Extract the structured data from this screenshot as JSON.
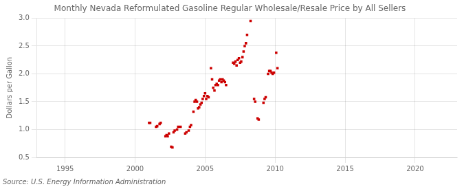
{
  "chart_data": {
    "type": "scatter",
    "title": "Monthly Nevada Reformulated Gasoline Regular Wholesale/Resale Price by All Sellers",
    "ylabel": "Dollars per Gallon",
    "annotations": [
      "Source: U.S. Energy Information Administration"
    ],
    "color": "#cc0000",
    "marker": "square",
    "grid": true,
    "xlim": [
      1993,
      2023
    ],
    "ylim": [
      0.5,
      3.0
    ],
    "xticks": [
      1995,
      2000,
      2005,
      2010,
      2015,
      2020
    ],
    "yticks": [
      0.5,
      {
        "value": 1.0,
        "label": "1.0"
      },
      1.5,
      {
        "value": 2.0,
        "label": "2.0"
      },
      2.5,
      {
        "value": 3.0,
        "label": "3.0"
      }
    ],
    "x": [
      2001.0,
      2001.08,
      2001.5,
      2001.58,
      2001.75,
      2001.83,
      2002.17,
      2002.25,
      2002.33,
      2002.42,
      2002.58,
      2002.67,
      2002.75,
      2002.83,
      2003.0,
      2003.08,
      2003.25,
      2003.58,
      2003.67,
      2003.83,
      2003.92,
      2004.0,
      2004.17,
      2004.25,
      2004.33,
      2004.42,
      2004.5,
      2004.58,
      2004.67,
      2004.75,
      2004.83,
      2004.92,
      2005.0,
      2005.08,
      2005.17,
      2005.25,
      2005.42,
      2005.5,
      2005.58,
      2005.67,
      2005.75,
      2005.83,
      2005.92,
      2006.0,
      2006.08,
      2006.17,
      2006.25,
      2006.33,
      2006.42,
      2006.5,
      2007.0,
      2007.08,
      2007.17,
      2007.25,
      2007.33,
      2007.42,
      2007.5,
      2007.58,
      2007.67,
      2007.75,
      2007.83,
      2007.92,
      2008.0,
      2008.25,
      2008.5,
      2008.58,
      2008.75,
      2008.83,
      2009.17,
      2009.25,
      2009.33,
      2009.5,
      2009.58,
      2009.67,
      2009.75,
      2009.83,
      2009.92,
      2010.08,
      2010.17
    ],
    "values": [
      1.12,
      1.12,
      1.05,
      1.06,
      1.1,
      1.12,
      0.88,
      0.9,
      0.88,
      0.93,
      0.69,
      0.68,
      0.95,
      0.98,
      1.0,
      1.05,
      1.05,
      0.93,
      0.95,
      0.98,
      1.05,
      1.08,
      1.32,
      1.5,
      1.53,
      1.5,
      1.38,
      1.4,
      1.45,
      1.48,
      1.55,
      1.6,
      1.65,
      1.55,
      1.6,
      1.58,
      2.1,
      1.9,
      1.75,
      1.7,
      1.8,
      1.82,
      1.8,
      1.88,
      1.9,
      1.85,
      1.9,
      1.88,
      1.85,
      1.8,
      2.2,
      2.18,
      2.22,
      2.15,
      2.25,
      2.28,
      2.2,
      2.22,
      2.3,
      2.4,
      2.5,
      2.55,
      2.7,
      2.95,
      1.55,
      1.5,
      1.2,
      1.18,
      1.48,
      1.55,
      1.58,
      2.0,
      2.05,
      2.05,
      2.02,
      2.0,
      2.02,
      2.38,
      2.1
    ]
  }
}
